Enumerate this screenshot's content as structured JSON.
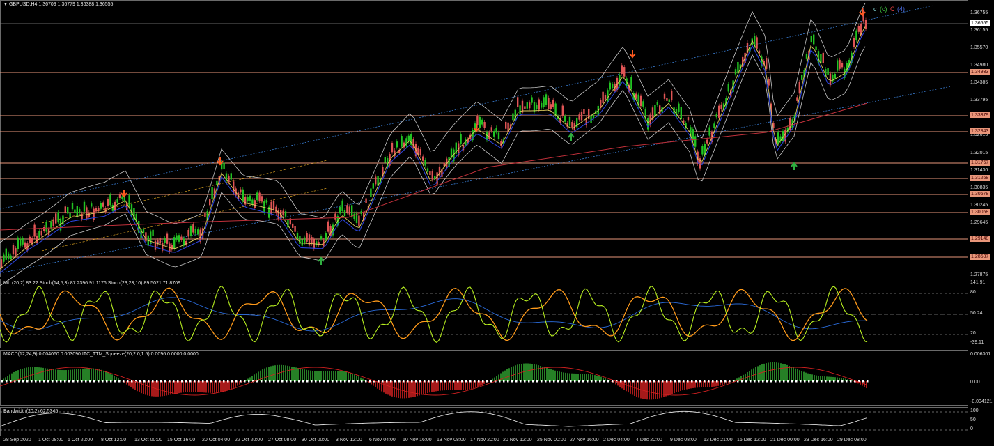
{
  "symbol_header": "GBPUSD,H4  1.36709 1.36779 1.36388 1.36555",
  "main_axis_labels": [
    "1.36755",
    "1.36155",
    "1.35570",
    "1.34980",
    "1.34385",
    "1.33795",
    "1.33200",
    "1.32615",
    "1.32015",
    "1.31430",
    "1.30835",
    "1.30245",
    "1.29645",
    "1.29050",
    "1.28465",
    "1.27875"
  ],
  "current_price_tag": "1.36555",
  "level_tags": [
    "1.34933",
    "1.33379",
    "1.32843",
    "1.31767",
    "1.31268",
    "1.30678",
    "1.30058",
    "1.29148",
    "1.28537"
  ],
  "wave_labels": {
    "c1": "c",
    "c2": "(c)",
    "c3": "C",
    "c4": "(4)"
  },
  "stoch_title": "%b (20,2) 83.22  Stoch(14,5,3) 87.2396 91.1176  Stoch(23,23,10) 89.5021 71.8709",
  "stoch_axis": {
    "top": "141.91",
    "l80": "80",
    "l50": "50.24",
    "l20": "20",
    "bottom": "-39.11"
  },
  "macd_title": "MACD(12,24,9) 0.004060 0.003090  ITC_TTM_Squeeze(20,2.0,1.5) 0.0096 0.0000 0.0000",
  "macd_axis": {
    "top": "0.006301",
    "mid": "0.00",
    "bottom": "-0.004121"
  },
  "bw_title": "Bandwidth(20,2) 62.5345",
  "bw_axis": {
    "top": "100",
    "mid": "50",
    "bottom": "0"
  },
  "x_axis_labels": [
    "28 Sep 2020",
    "1 Oct 08:00",
    "5 Oct 20:00",
    "8 Oct 12:00",
    "13 Oct 00:00",
    "15 Oct 16:00",
    "20 Oct 04:00",
    "22 Oct 20:00",
    "27 Oct 08:00",
    "30 Oct 00:00",
    "3 Nov 12:00",
    "6 Nov 04:00",
    "10 Nov 16:00",
    "13 Nov 08:00",
    "17 Nov 20:00",
    "20 Nov 12:00",
    "25 Nov 00:00",
    "27 Nov 16:00",
    "2 Dec 04:00",
    "4 Dec 20:00",
    "9 Dec 08:00",
    "13 Dec 21:00",
    "16 Dec 12:00",
    "21 Dec 00:00",
    "23 Dec 16:00",
    "29 Dec 08:00"
  ],
  "colors": {
    "bull": "#22c322",
    "bear": "#e05555",
    "level": "#e9967a",
    "ma_long": "#c0303a",
    "ma_mid": "#2a43d8",
    "ma_fast": "#e0d060",
    "bands": "#c8c8c8",
    "channel": "#3a7fd6",
    "arrow_down": "#ff5a1f",
    "arrow_up": "#2fae3f"
  }
}
